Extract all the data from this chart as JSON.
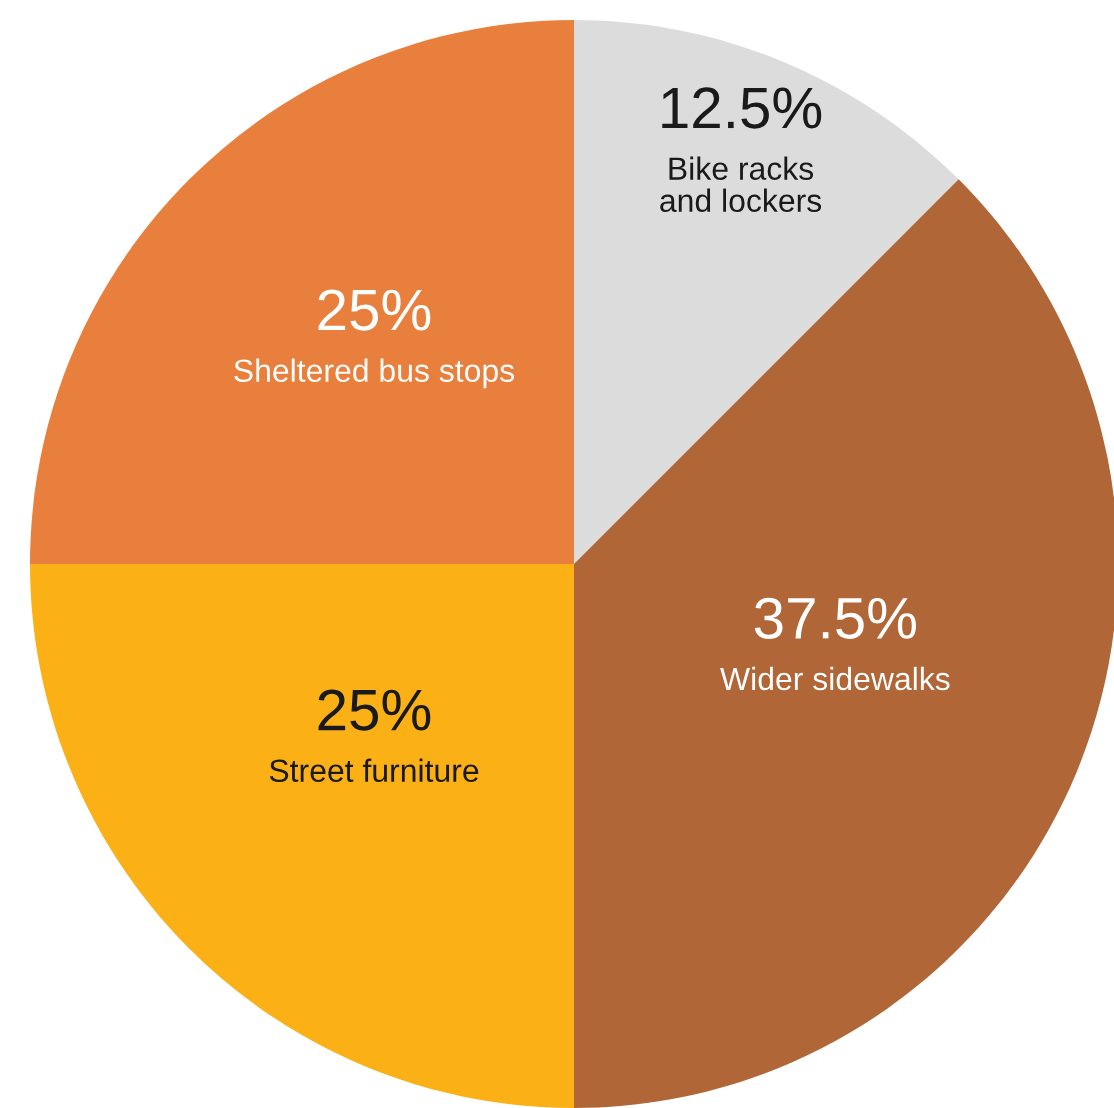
{
  "chart_data": {
    "type": "pie",
    "categories": [
      "Bike racks\nand lockers",
      "Wider sidewalks",
      "Street furniture",
      "Sheltered bus stops"
    ],
    "values": [
      12.5,
      37.5,
      25,
      25
    ],
    "colors": [
      "#dcdcdc",
      "#b06637",
      "#fbb016",
      "#e97f3c"
    ],
    "value_labels": [
      "12.5%",
      "37.5%",
      "25%",
      "25%"
    ]
  }
}
